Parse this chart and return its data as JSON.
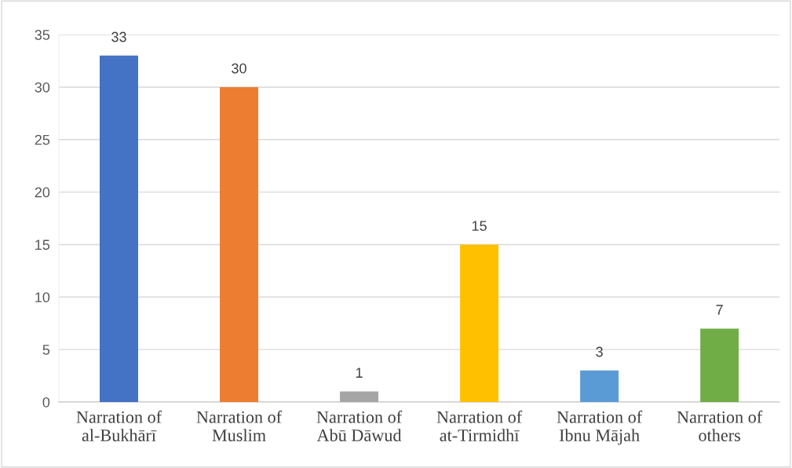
{
  "chart_data": {
    "type": "bar",
    "categories": [
      "Narration of\nal-Bukhārī",
      "Narration of\nMuslim",
      "Narration of\nAbū Dāwud",
      "Narration of\nat-Tirmidhī",
      "Narration of\nIbnu Mājah",
      "Narration of\nothers"
    ],
    "values": [
      33,
      30,
      1,
      15,
      3,
      7
    ],
    "colors": [
      "#4472c4",
      "#ed7d31",
      "#a5a5a5",
      "#ffc000",
      "#5b9bd5",
      "#70ad47"
    ],
    "ylim": [
      0,
      35
    ],
    "yticks": [
      0,
      5,
      10,
      15,
      20,
      25,
      30,
      35
    ],
    "grid": "y",
    "data_labels": true,
    "legend": false
  }
}
